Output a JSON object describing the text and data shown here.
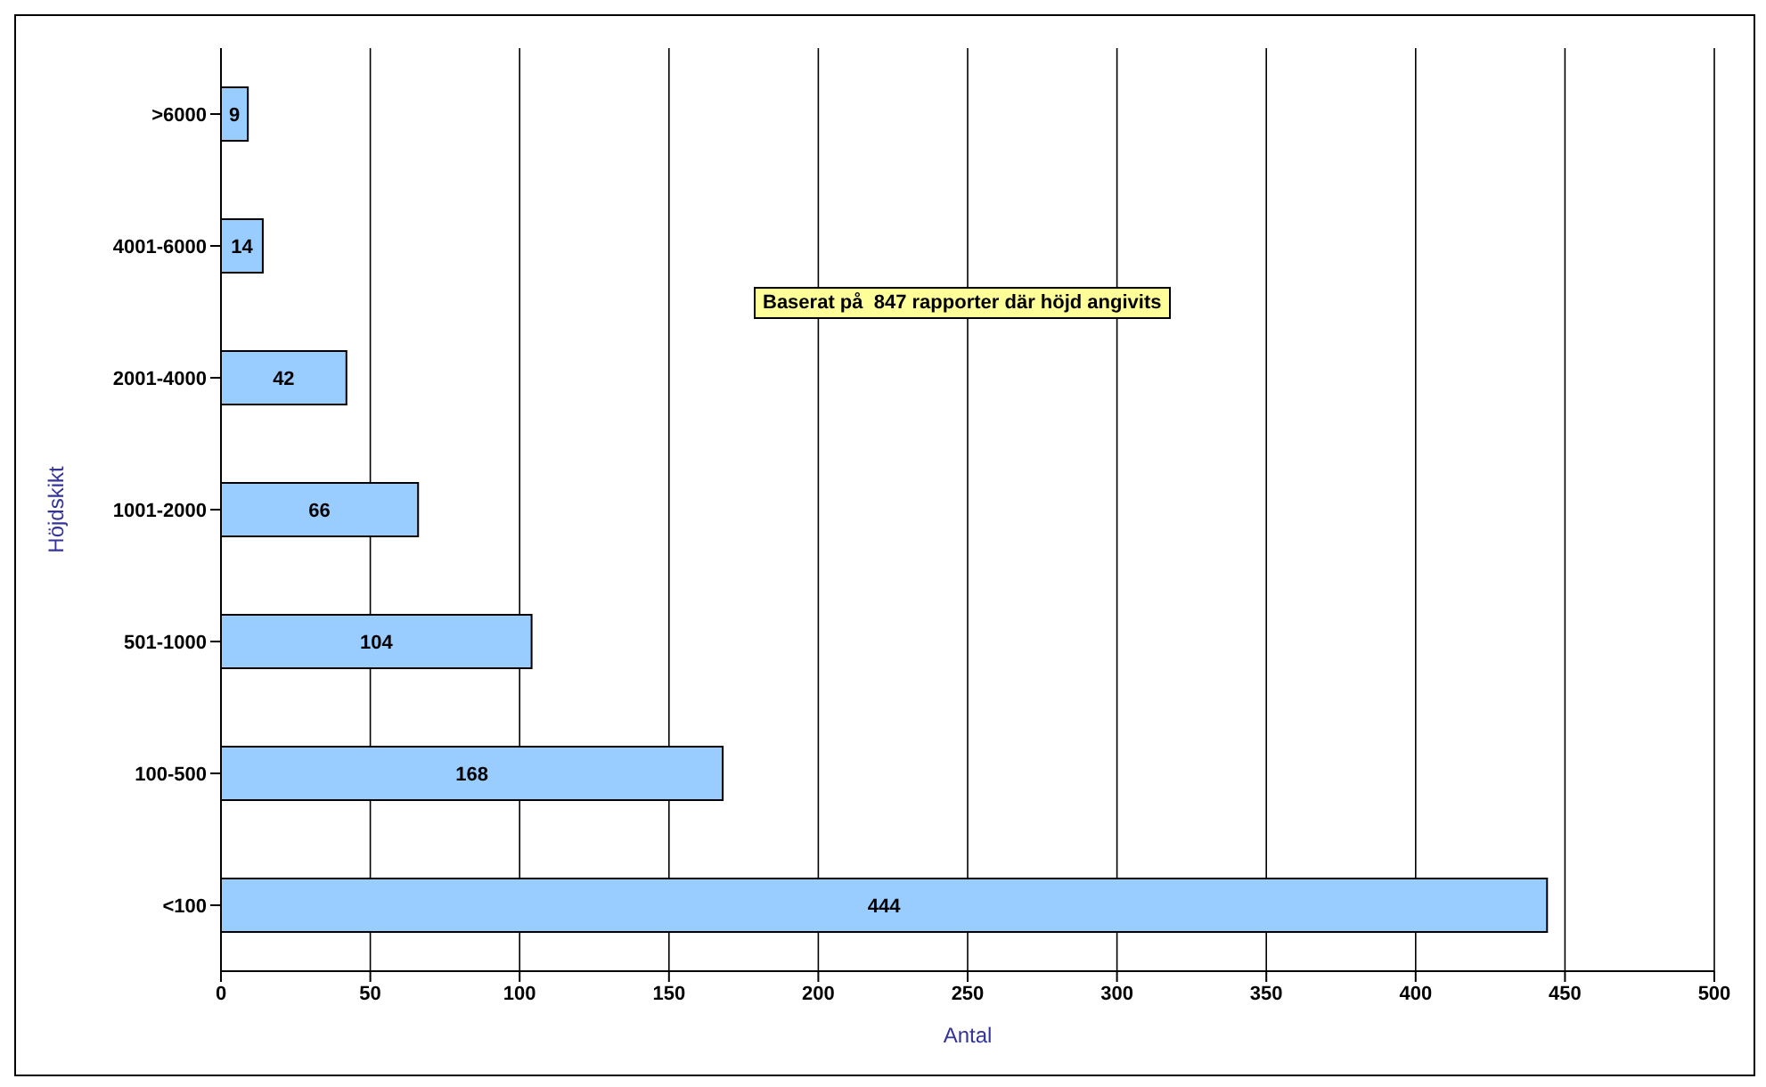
{
  "chart_data": {
    "type": "bar",
    "orientation": "horizontal",
    "xlabel": "Antal",
    "ylabel": "Höjdskikt",
    "categories": [
      ">6000",
      "4001-6000",
      "2001-4000",
      "1001-2000",
      "501-1000",
      "100-500",
      "<100"
    ],
    "values": [
      9,
      14,
      42,
      66,
      104,
      168,
      444
    ],
    "color": "#99ccff",
    "xlim": [
      0,
      500
    ],
    "xticks": [
      0,
      50,
      100,
      150,
      200,
      250,
      300,
      350,
      400,
      450,
      500
    ],
    "grid": "x",
    "data_labels": true,
    "annotations": [
      "Baserat på  847 rapporter där höjd angivits"
    ]
  }
}
